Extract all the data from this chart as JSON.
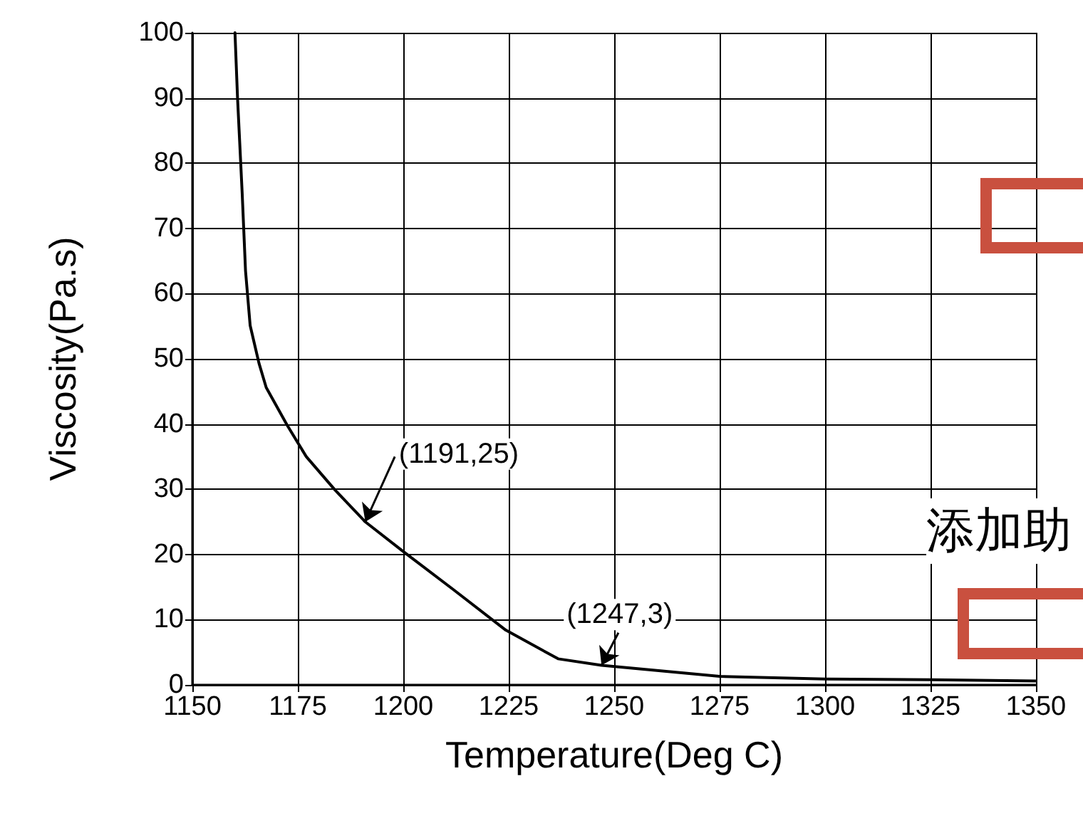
{
  "chart_data": {
    "type": "line",
    "xlabel": "Temperature(Deg C)",
    "ylabel": "Viscosity(Pa.s)",
    "x": [
      1160.1,
      1160.7,
      1161.8,
      1162.6,
      1163.7,
      1165.8,
      1167.5,
      1172.5,
      1177.0,
      1183.8,
      1191,
      1200.1,
      1211.9,
      1224.3,
      1236.7,
      1247,
      1275,
      1300,
      1325,
      1350
    ],
    "values": [
      100,
      90.1,
      75.5,
      63.5,
      55.1,
      49.3,
      45.6,
      39.8,
      35.0,
      29.9,
      25,
      20.4,
      14.6,
      8.4,
      4.0,
      3,
      1.3,
      0.9,
      0.8,
      0.6
    ],
    "color": "#000000",
    "marker": "none",
    "line_style": "solid",
    "grid": true,
    "xlim": [
      1150,
      1350
    ],
    "xticks": [
      1150,
      1175,
      1200,
      1225,
      1250,
      1275,
      1300,
      1325,
      1350
    ],
    "ylim": [
      0,
      100
    ],
    "yticks": [
      0,
      10,
      20,
      30,
      40,
      50,
      60,
      70,
      80,
      90,
      100
    ],
    "annotations": [
      {
        "text": "(1191,25)",
        "x": 1191,
        "y": 25
      },
      {
        "text": "(1247,3)",
        "x": 1247,
        "y": 3
      },
      "添加助"
    ]
  }
}
